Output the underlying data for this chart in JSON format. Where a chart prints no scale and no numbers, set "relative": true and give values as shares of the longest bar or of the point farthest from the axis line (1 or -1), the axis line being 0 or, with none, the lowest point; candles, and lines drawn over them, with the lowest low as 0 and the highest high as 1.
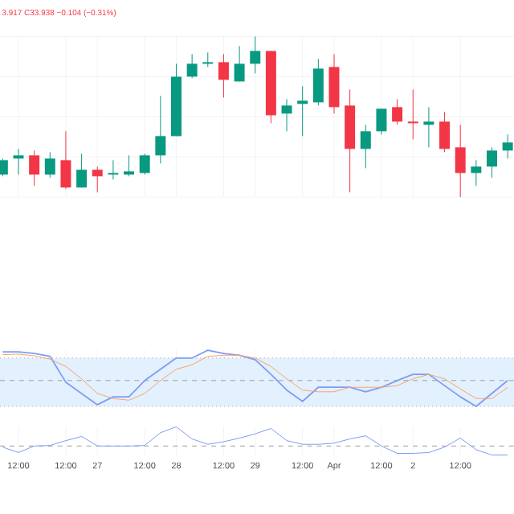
{
  "chart_data": [
    {
      "type": "candlestick",
      "relative": true,
      "grid": true,
      "tick_labels": false,
      "annotations": [
        "3.917 C33.938 −0.104 (−0.31%)"
      ],
      "categories": [
        null,
        null,
        null,
        null,
        null,
        null,
        null,
        null,
        null,
        null,
        null,
        null,
        null,
        null,
        null,
        null,
        null,
        null,
        null,
        null,
        null,
        null,
        null,
        null,
        null,
        null,
        null,
        null,
        null,
        null,
        null,
        null,
        null
      ],
      "ohlc": [
        [
          0.14,
          0.24,
          0.13,
          0.23
        ],
        [
          0.24,
          0.3,
          0.14,
          0.26
        ],
        [
          0.26,
          0.29,
          0.07,
          0.14
        ],
        [
          0.14,
          0.28,
          0.12,
          0.24
        ],
        [
          0.23,
          0.41,
          0.05,
          0.06
        ],
        [
          0.06,
          0.27,
          0.06,
          0.17
        ],
        [
          0.17,
          0.19,
          0.03,
          0.13
        ],
        [
          0.14,
          0.23,
          0.11,
          0.15
        ],
        [
          0.14,
          0.26,
          0.13,
          0.16
        ],
        [
          0.15,
          0.27,
          0.14,
          0.26
        ],
        [
          0.26,
          0.63,
          0.21,
          0.38
        ],
        [
          0.38,
          0.83,
          0.38,
          0.75
        ],
        [
          0.75,
          0.89,
          0.74,
          0.83
        ],
        [
          0.83,
          0.9,
          0.81,
          0.84
        ],
        [
          0.84,
          0.89,
          0.62,
          0.73
        ],
        [
          0.72,
          0.94,
          0.72,
          0.83
        ],
        [
          0.83,
          1,
          0.77,
          0.91
        ],
        [
          0.91,
          0.91,
          0.46,
          0.51
        ],
        [
          0.52,
          0.61,
          0.41,
          0.57
        ],
        [
          0.58,
          0.69,
          0.38,
          0.6
        ],
        [
          0.59,
          0.86,
          0.57,
          0.8
        ],
        [
          0.81,
          0.89,
          0.52,
          0.56
        ],
        [
          0.57,
          0.67,
          0.03,
          0.3
        ],
        [
          0.3,
          0.45,
          0.18,
          0.41
        ],
        [
          0.41,
          0.55,
          0.39,
          0.55
        ],
        [
          0.56,
          0.61,
          0.45,
          0.47
        ],
        [
          0.47,
          0.67,
          0.36,
          0.46
        ],
        [
          0.45,
          0.56,
          0.31,
          0.47
        ],
        [
          0.47,
          0.53,
          0.28,
          0.3
        ],
        [
          0.31,
          0.45,
          0,
          0.15
        ],
        [
          0.15,
          0.23,
          0.07,
          0.19
        ],
        [
          0.19,
          0.31,
          0.12,
          0.29
        ],
        [
          0.29,
          0.39,
          0.24,
          0.34
        ]
      ],
      "colors": [
        "#089981",
        "#089981",
        "#f23645",
        "#089981",
        "#f23645",
        "#089981",
        "#f23645",
        "#089981",
        "#089981",
        "#089981",
        "#089981",
        "#089981",
        "#089981",
        "#089981",
        "#f23645",
        "#089981",
        "#089981",
        "#f23645",
        "#089981",
        "#089981",
        "#089981",
        "#f23645",
        "#f23645",
        "#089981",
        "#089981",
        "#f23645",
        "#f23645",
        "#089981",
        "#f23645",
        "#f23645",
        "#089981",
        "#089981",
        "#089981"
      ]
    },
    {
      "type": "line",
      "relative": true,
      "grid": "x",
      "tick_labels": false,
      "categories": [
        null,
        null,
        null,
        null,
        null,
        null,
        null,
        null,
        null,
        null,
        null,
        null,
        null,
        null,
        null,
        null,
        null,
        null,
        null,
        null,
        null,
        null,
        null,
        null,
        null,
        null,
        null,
        null,
        null,
        null,
        null,
        null,
        null
      ],
      "bands": [
        {
          "axis": "y",
          "from": 0,
          "to": 0.86,
          "color": "#e3f0fd"
        }
      ],
      "ref_lines": [
        {
          "axis": "y",
          "value": 0.46,
          "line_style": "dashed",
          "color": "#9e9e9e"
        },
        {
          "axis": "y",
          "value": 0,
          "line_style": "dotted",
          "color": "#9e9e9e"
        },
        {
          "axis": "y",
          "value": 0.86,
          "line_style": "dotted",
          "color": "#9e9e9e"
        }
      ],
      "series": [
        {
          "color": "#7e9cf5",
          "values": [
            0.97,
            0.97,
            0.94,
            0.89,
            0.43,
            0.23,
            0.03,
            0.17,
            0.17,
            0.46,
            0.66,
            0.86,
            0.86,
            1,
            0.94,
            0.91,
            0.83,
            0.57,
            0.29,
            0.09,
            0.34,
            0.34,
            0.34,
            0.26,
            0.34,
            0.46,
            0.57,
            0.57,
            0.37,
            0.17,
            0,
            0.23,
            0.46
          ]
        },
        {
          "color": "#f5a46e",
          "values": [
            0.92,
            0.93,
            0.9,
            0.84,
            0.71,
            0.49,
            0.23,
            0.14,
            0.11,
            0.23,
            0.46,
            0.66,
            0.74,
            0.89,
            0.91,
            0.91,
            0.86,
            0.71,
            0.49,
            0.29,
            0.26,
            0.26,
            0.34,
            0.34,
            0.34,
            0.37,
            0.49,
            0.57,
            0.49,
            0.31,
            0.14,
            0.14,
            0.34
          ]
        }
      ]
    },
    {
      "type": "line",
      "relative": true,
      "grid": "x",
      "tick_labels": "x",
      "categories": [
        null,
        "12:00",
        null,
        null,
        "12:00",
        null,
        "27",
        null,
        null,
        "12:00",
        null,
        "28",
        null,
        null,
        "12:00",
        null,
        "29",
        null,
        null,
        "12:00",
        null,
        "Apr",
        null,
        null,
        "12:00",
        null,
        "2",
        null,
        null,
        "12:00",
        null,
        null,
        null
      ],
      "ref_lines": [
        {
          "axis": "y",
          "value": 0.32,
          "line_style": "dashed",
          "color": "#9e9e9e"
        }
      ],
      "series": [
        {
          "color": "#7e9cf5",
          "values": [
            0.28,
            0.09,
            0.32,
            0.34,
            0.51,
            0.66,
            0.32,
            0.32,
            0.32,
            0.34,
            0.79,
            1,
            0.57,
            0.38,
            0.47,
            0.6,
            0.75,
            0.94,
            0.51,
            0.38,
            0.38,
            0.42,
            0.57,
            0.68,
            0.32,
            0.06,
            0.06,
            0.09,
            0.28,
            0.6,
            0.19,
            0,
            0
          ]
        }
      ]
    }
  ]
}
